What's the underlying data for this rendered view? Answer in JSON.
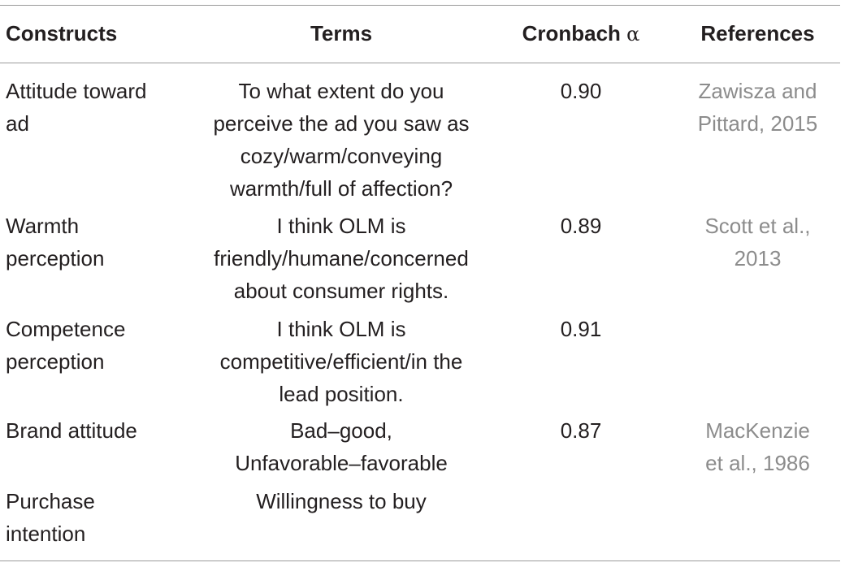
{
  "table": {
    "headers": {
      "construct": "Constructs",
      "terms": "Terms",
      "alpha_label": "Cronbach",
      "alpha_symbol": "α",
      "references": "References"
    },
    "rows": [
      {
        "construct": [
          "Attitude toward",
          "ad"
        ],
        "terms": [
          "To what extent do you",
          "perceive the ad you saw as",
          "cozy/warm/conveying",
          "warmth/full of affection?"
        ],
        "alpha": "0.90",
        "reference": [
          "Zawisza and",
          "Pittard, 2015"
        ]
      },
      {
        "construct": [
          "Warmth",
          "perception"
        ],
        "terms": [
          "I think OLM is",
          "friendly/humane/concerned",
          "about consumer rights."
        ],
        "alpha": "0.89",
        "reference": [
          "Scott et al.,",
          "2013"
        ]
      },
      {
        "construct": [
          "Competence",
          "perception"
        ],
        "terms": [
          "I think OLM is",
          "competitive/efficient/in the",
          "lead position."
        ],
        "alpha": "0.91",
        "reference": []
      },
      {
        "construct": [
          "Brand attitude"
        ],
        "terms": [
          "Bad–good,",
          "Unfavorable–favorable"
        ],
        "alpha": "0.87",
        "reference": [
          "MacKenzie",
          "et al., 1986"
        ]
      },
      {
        "construct": [
          "Purchase",
          "intention"
        ],
        "terms": [
          "Willingness to buy"
        ],
        "alpha": "",
        "reference": []
      }
    ]
  },
  "colors": {
    "text": "#231f20",
    "reference_text": "#8c8c8c",
    "rule": "#9a9a9a"
  }
}
